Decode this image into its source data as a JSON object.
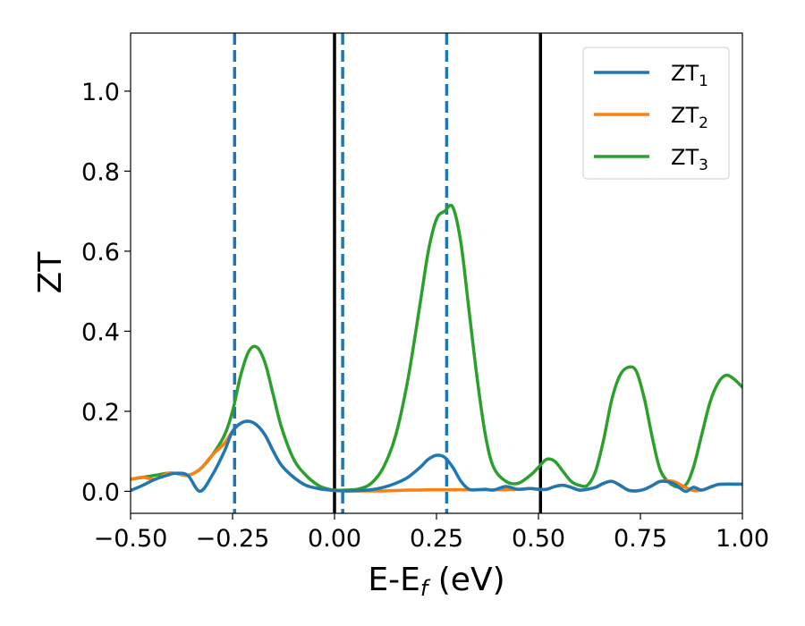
{
  "chart_data": {
    "type": "line",
    "xlabel": "E-E",
    "xlabel_sub": "f",
    "xlabel_unit": " (eV)",
    "ylabel": "ZT",
    "xlim": [
      -0.5,
      1.0
    ],
    "ylim": [
      -0.055,
      1.145
    ],
    "x_ticks": [
      -0.5,
      -0.25,
      0.0,
      0.25,
      0.5,
      0.75,
      1.0
    ],
    "x_tick_labels": [
      "−0.50",
      "−0.25",
      "0.00",
      "0.25",
      "0.50",
      "0.75",
      "1.00"
    ],
    "y_ticks": [
      0.0,
      0.2,
      0.4,
      0.6,
      0.8,
      1.0
    ],
    "y_tick_labels": [
      "0.0",
      "0.2",
      "0.4",
      "0.6",
      "0.8",
      "1.0"
    ],
    "grid": false,
    "legend_position": "top-right",
    "vlines_solid": {
      "color": "#000000",
      "x": [
        0.0,
        0.505
      ]
    },
    "vlines_dashed": {
      "color": "#1f77b4",
      "x": [
        -0.245,
        0.02,
        0.275
      ]
    },
    "series": [
      {
        "name": "ZT",
        "name_sub": "3",
        "color": "#2ca02c",
        "x": [
          -0.5,
          -0.47,
          -0.44,
          -0.41,
          -0.39,
          -0.36,
          -0.33,
          -0.3,
          -0.27,
          -0.25,
          -0.23,
          -0.21,
          -0.19,
          -0.17,
          -0.15,
          -0.13,
          -0.1,
          -0.07,
          -0.04,
          -0.02,
          0.0,
          0.03,
          0.06,
          0.09,
          0.12,
          0.15,
          0.18,
          0.21,
          0.23,
          0.25,
          0.27,
          0.29,
          0.31,
          0.33,
          0.35,
          0.37,
          0.39,
          0.42,
          0.45,
          0.48,
          0.5,
          0.52,
          0.54,
          0.56,
          0.58,
          0.6,
          0.62,
          0.64,
          0.66,
          0.68,
          0.7,
          0.72,
          0.74,
          0.76,
          0.78,
          0.8,
          0.83,
          0.86,
          0.88,
          0.9,
          0.92,
          0.94,
          0.96,
          0.98,
          1.0
        ],
        "y": [
          0.03,
          0.035,
          0.04,
          0.045,
          0.045,
          0.04,
          0.055,
          0.09,
          0.14,
          0.2,
          0.29,
          0.35,
          0.36,
          0.32,
          0.24,
          0.16,
          0.08,
          0.04,
          0.015,
          0.007,
          0.003,
          0.003,
          0.006,
          0.02,
          0.06,
          0.14,
          0.28,
          0.47,
          0.6,
          0.68,
          0.7,
          0.71,
          0.62,
          0.45,
          0.28,
          0.14,
          0.06,
          0.025,
          0.02,
          0.04,
          0.06,
          0.08,
          0.075,
          0.05,
          0.025,
          0.015,
          0.015,
          0.05,
          0.13,
          0.23,
          0.29,
          0.31,
          0.3,
          0.23,
          0.13,
          0.05,
          0.015,
          0.015,
          0.06,
          0.14,
          0.22,
          0.27,
          0.29,
          0.28,
          0.26
        ]
      },
      {
        "name": "ZT",
        "name_sub": "2",
        "color": "#ff7f0e",
        "x": [
          -0.5,
          -0.47,
          -0.44,
          -0.41,
          -0.39,
          -0.36,
          -0.33,
          -0.3,
          -0.27,
          -0.25,
          -0.23,
          -0.21,
          -0.19,
          -0.17,
          -0.15,
          -0.13,
          -0.1,
          -0.07,
          -0.04,
          -0.02,
          0.0,
          0.03,
          0.06,
          0.09,
          0.12,
          0.15,
          0.18,
          0.21,
          0.23,
          0.25,
          0.27,
          0.29,
          0.31,
          0.33,
          0.35,
          0.37,
          0.39,
          0.42,
          0.45,
          0.48,
          0.5,
          0.52,
          0.54,
          0.56,
          0.58,
          0.6,
          0.62,
          0.64,
          0.66,
          0.68,
          0.7,
          0.72,
          0.74,
          0.76,
          0.78,
          0.8,
          0.83,
          0.86,
          0.88,
          0.9,
          0.92,
          0.94,
          0.96,
          0.98,
          1.0
        ],
        "y": [
          0.03,
          0.035,
          0.03,
          0.045,
          0.045,
          0.04,
          0.055,
          0.09,
          0.12,
          0.15,
          0.17,
          0.175,
          0.165,
          0.14,
          0.1,
          0.065,
          0.035,
          0.015,
          0.007,
          0.004,
          0.002,
          0.001,
          0.001,
          0.001,
          0.001,
          0.002,
          0.003,
          0.003,
          0.004,
          0.004,
          0.004,
          0.004,
          0.004,
          0.004,
          0.004,
          0.004,
          0.004,
          0.004,
          0.005,
          0.007,
          0.005,
          0.005,
          0.012,
          0.015,
          0.01,
          0.003,
          0.005,
          0.01,
          0.02,
          0.025,
          0.015,
          0.003,
          0.001,
          0.005,
          0.015,
          0.025,
          0.025,
          0.01,
          0.002,
          0.003,
          0.01,
          0.017,
          0.018,
          0.018,
          0.018
        ]
      },
      {
        "name": "ZT",
        "name_sub": "1",
        "color": "#1f77b4",
        "x": [
          -0.5,
          -0.47,
          -0.44,
          -0.41,
          -0.39,
          -0.36,
          -0.33,
          -0.3,
          -0.27,
          -0.25,
          -0.23,
          -0.21,
          -0.19,
          -0.17,
          -0.15,
          -0.13,
          -0.1,
          -0.07,
          -0.04,
          -0.02,
          0.0,
          0.03,
          0.06,
          0.09,
          0.12,
          0.15,
          0.18,
          0.21,
          0.23,
          0.25,
          0.27,
          0.29,
          0.31,
          0.33,
          0.35,
          0.37,
          0.39,
          0.42,
          0.45,
          0.48,
          0.5,
          0.52,
          0.54,
          0.56,
          0.58,
          0.6,
          0.62,
          0.64,
          0.66,
          0.68,
          0.7,
          0.72,
          0.74,
          0.76,
          0.78,
          0.8,
          0.83,
          0.86,
          0.88,
          0.9,
          0.92,
          0.94,
          0.96,
          0.98,
          1.0
        ],
        "y": [
          0.002,
          0.015,
          0.03,
          0.04,
          0.045,
          0.04,
          0.0,
          0.04,
          0.1,
          0.15,
          0.17,
          0.175,
          0.165,
          0.14,
          0.1,
          0.065,
          0.035,
          0.015,
          0.007,
          0.004,
          0.002,
          0.001,
          0.002,
          0.004,
          0.01,
          0.02,
          0.035,
          0.06,
          0.08,
          0.09,
          0.085,
          0.06,
          0.025,
          0.005,
          0.004,
          0.005,
          0.003,
          0.012,
          0.005,
          0.007,
          0.005,
          0.005,
          0.012,
          0.015,
          0.01,
          0.003,
          0.005,
          0.01,
          0.02,
          0.025,
          0.015,
          0.003,
          0.001,
          0.005,
          0.015,
          0.025,
          0.02,
          0.0,
          0.01,
          0.003,
          0.01,
          0.017,
          0.018,
          0.018,
          0.018
        ]
      }
    ],
    "legend_order": [
      2,
      1,
      0
    ]
  }
}
